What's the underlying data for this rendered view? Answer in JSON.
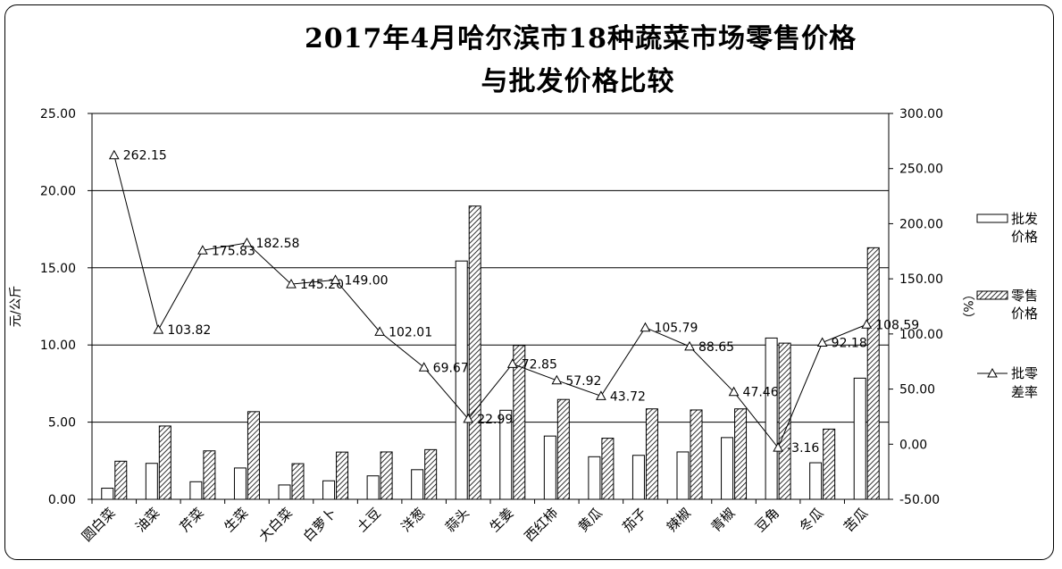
{
  "chart_data": {
    "type": "bar",
    "title_line1": "2017年4月哈尔滨市18种蔬菜市场零售价格",
    "title_line2": "与批发价格比较",
    "ylabel_left": "元/公斤",
    "ylabel_right": "（%）",
    "ylim_left": [
      0,
      25
    ],
    "ylim_right": [
      -50,
      300
    ],
    "yticks_left": [
      "0.00",
      "5.00",
      "10.00",
      "15.00",
      "20.00",
      "25.00"
    ],
    "yticks_right": [
      "-50.00",
      "0.00",
      "50.00",
      "100.00",
      "150.00",
      "200.00",
      "250.00",
      "300.00"
    ],
    "grid": "horizontal",
    "legend_position": "right",
    "categories": [
      "圆白菜",
      "油菜",
      "芹菜",
      "生菜",
      "大白菜",
      "白萝卜",
      "土豆",
      "洋葱",
      "蒜头",
      "生姜",
      "西红柿",
      "黄瓜",
      "茄子",
      "辣椒",
      "青椒",
      "豆角",
      "冬瓜",
      "苦瓜"
    ],
    "series": [
      {
        "name": "批发价格",
        "axis": "left",
        "kind": "bar",
        "pattern": "plain",
        "values": [
          0.72,
          2.33,
          1.14,
          2.03,
          0.93,
          1.2,
          1.52,
          1.92,
          15.44,
          5.77,
          4.1,
          2.76,
          2.85,
          3.07,
          4.0,
          10.45,
          2.37,
          7.85
        ]
      },
      {
        "name": "零售价格",
        "axis": "left",
        "kind": "bar",
        "pattern": "hatched",
        "values": [
          2.47,
          4.75,
          3.14,
          5.68,
          2.31,
          3.06,
          3.07,
          3.22,
          19.0,
          9.97,
          6.47,
          3.96,
          5.86,
          5.79,
          5.86,
          10.12,
          4.55,
          16.3
        ]
      },
      {
        "name": "批零差率",
        "axis": "right",
        "kind": "line",
        "marker": "triangle",
        "values": [
          262.15,
          103.82,
          175.83,
          182.58,
          145.2,
          149.0,
          102.01,
          69.67,
          22.99,
          72.85,
          57.92,
          43.72,
          105.79,
          88.65,
          47.46,
          -3.16,
          92.18,
          108.59
        ],
        "labels": [
          "262.15",
          "103.82",
          "175.83",
          "182.58",
          "145.20",
          "149.00",
          "102.01",
          "69.67",
          "22.99",
          "72.85",
          "57.92",
          "43.72",
          "105.79",
          "88.65",
          "47.46",
          "-3.16",
          "92.18",
          "108.59"
        ]
      }
    ],
    "legend": [
      {
        "line1": "批发",
        "line2": "价格",
        "kind": "plain"
      },
      {
        "line1": "零售",
        "line2": "价格",
        "kind": "hatched"
      },
      {
        "line1": "批零",
        "line2": "差率",
        "kind": "line"
      }
    ]
  }
}
